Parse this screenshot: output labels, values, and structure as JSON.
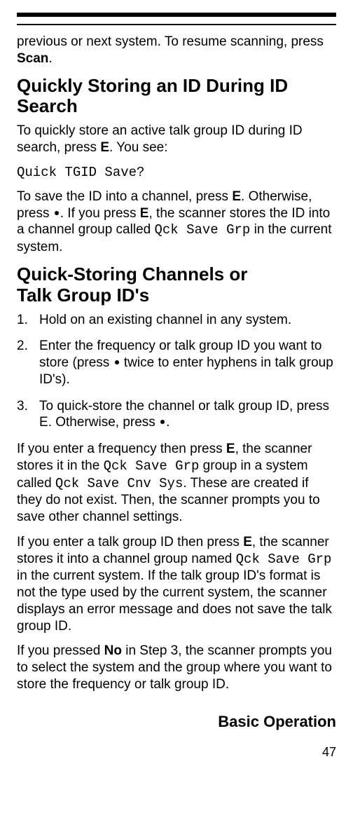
{
  "intro_part1": "previous or next system. To resume scanning, press ",
  "intro_bold": "Scan",
  "intro_part2": ".",
  "heading1": "Quickly Storing an ID During ID Search",
  "p1_part1": "To quickly store an active talk group ID during ID search, press ",
  "p1_bold": "E",
  "p1_part2": ". You see:",
  "code1": "Quick TGID Save?",
  "p2_part1": "To save the ID into a channel, press ",
  "p2_b1": "E",
  "p2_part2": ". Otherwise, press ",
  "p2_part3": ". If you press ",
  "p2_b2": "E",
  "p2_part4": ", the scanner stores the ID into a channel group called ",
  "p2_mono": "Qck Save Grp",
  "p2_part5": " in the current system.",
  "heading2_line1": "Quick-Storing Channels or",
  "heading2_line2": "Talk Group ID's",
  "step1": "Hold on an existing channel in any system.",
  "step2_part1": "Enter the frequency or talk group ID you want to store (press ",
  "step2_part2": " twice to enter hyphens in talk group ID's).",
  "step3_part1": "To quick-store the channel or talk group ID, press ",
  "step3_b": "E",
  "step3_part2": ". Otherwise, press ",
  "step3_part3": ".",
  "p3_part1": "If you enter a frequency then press ",
  "p3_b": "E",
  "p3_part2": ", the scanner stores it in the ",
  "p3_mono1": "Qck Save Grp",
  "p3_part3": " group in a system called ",
  "p3_mono2": "Qck Save Cnv Sys",
  "p3_part4": ". These are created if they do not exist. Then, the scanner prompts you to save other channel settings.",
  "p4_part1": "If you enter a talk group ID then press ",
  "p4_b": "E",
  "p4_part2": ", the scanner stores it into a channel group named ",
  "p4_mono": "Qck Save Grp",
  "p4_part3": " in the current system. If the talk group ID's format is not the type used by the current system, the scanner displays an error message and does not save the talk group ID.",
  "p5_part1": "If you pressed ",
  "p5_b": "No",
  "p5_part2": " in Step 3, the scanner prompts you to select the system and the group where you want to store the frequency or talk group ID.",
  "footer": "Basic Operation",
  "pagenum": "47"
}
